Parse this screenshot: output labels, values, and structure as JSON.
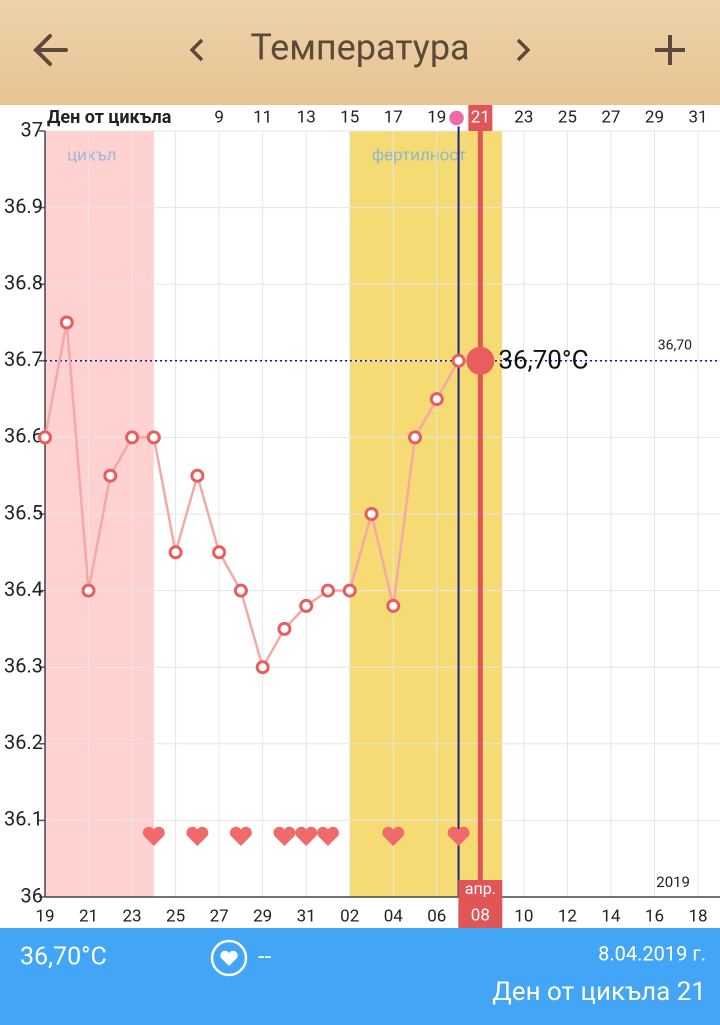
{
  "header": {
    "title": "Температура"
  },
  "chart_data": {
    "type": "line",
    "x_axis_label": "Ден от цикъла",
    "categories": [
      "19",
      null,
      "21",
      null,
      "23",
      null,
      "25",
      null,
      "27",
      null,
      "29",
      null,
      "31",
      null,
      "02",
      null,
      "04",
      null,
      "06",
      null,
      "08",
      null,
      "10",
      null,
      "12",
      null,
      "14",
      null,
      "16",
      null,
      "18"
    ],
    "month_label": "апр.",
    "cycle_days": [
      null,
      null,
      null,
      null,
      null,
      null,
      null,
      null,
      "9",
      null,
      "11",
      null,
      "13",
      null,
      "15",
      null,
      "17",
      null,
      "19",
      null,
      "21",
      null,
      "23",
      null,
      "25",
      null,
      "27",
      null,
      "29",
      null,
      "31"
    ],
    "series": [
      {
        "color": "#e85d5d",
        "values": [
          36.6,
          36.75,
          36.4,
          36.55,
          36.6,
          36.6,
          36.45,
          36.55,
          36.45,
          36.4,
          36.3,
          36.35,
          36.38,
          36.4,
          36.4,
          36.5,
          36.38,
          36.6,
          36.65,
          36.7,
          36.7,
          null,
          null,
          null,
          null,
          null,
          null,
          null,
          null,
          null,
          null
        ]
      }
    ],
    "ylim": [
      36,
      37
    ],
    "yticks": [
      36,
      36.1,
      36.2,
      36.3,
      36.4,
      36.5,
      36.6,
      36.7,
      36.8,
      36.9,
      37
    ],
    "bands": [
      {
        "label": "цикъл",
        "from": 0,
        "to": 5,
        "color": "#ffd1d1",
        "text_color": "#9fb8d8"
      },
      {
        "label": "фертилност",
        "from": 14,
        "to": 21,
        "color": "#f6da74",
        "text_color": "#8fb8c8"
      }
    ],
    "heart_days": [
      5,
      7,
      9,
      11,
      12,
      13,
      16,
      19
    ],
    "today_index": 19,
    "selected_index": 20,
    "selected_label": "36,70°C",
    "reference_line": {
      "value": 36.7,
      "label": "36,70"
    },
    "year": "2019",
    "grid": true
  },
  "footer": {
    "temperature": "36,70°C",
    "note": "--",
    "date": "8.04.2019 г.",
    "cycle_day": "Ден от цикъла 21"
  }
}
